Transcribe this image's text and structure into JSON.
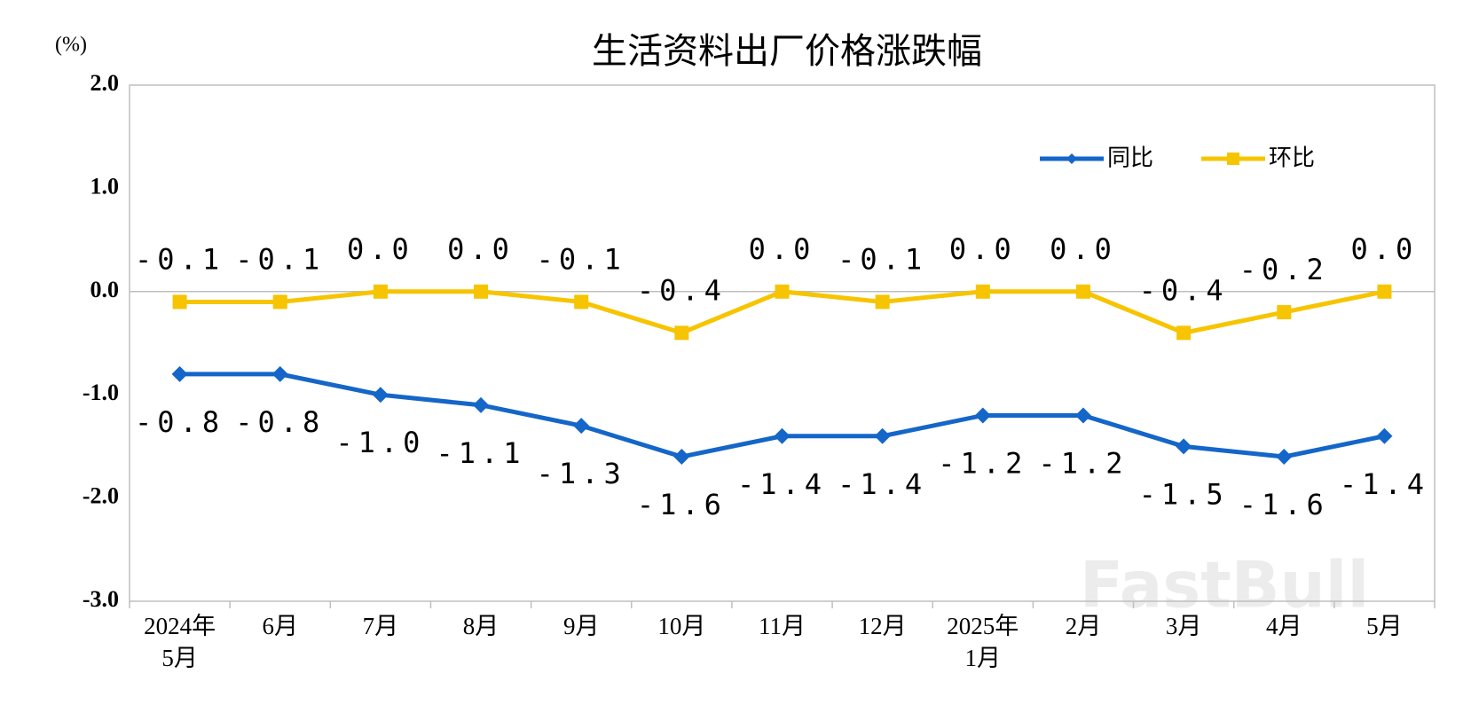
{
  "chart_data": {
    "type": "line",
    "title": "生活资料出厂价格涨跌幅",
    "y_axis_label": "(%)",
    "categories": [
      "2024年\n5月",
      "6月",
      "7月",
      "8月",
      "9月",
      "10月",
      "11月",
      "12月",
      "2025年\n1月",
      "2月",
      "3月",
      "4月",
      "5月"
    ],
    "series": [
      {
        "name": "同比",
        "color": "#1466c8",
        "marker": "diamond",
        "values": [
          -0.8,
          -0.8,
          -1.0,
          -1.1,
          -1.3,
          -1.6,
          -1.4,
          -1.4,
          -1.2,
          -1.2,
          -1.5,
          -1.6,
          -1.4
        ],
        "value_labels": [
          "-0.8",
          "-0.8",
          "-1.0",
          "-1.1",
          "-1.3",
          "-1.6",
          "-1.4",
          "-1.4",
          "-1.2",
          "-1.2",
          "-1.5",
          "-1.6",
          "-1.4"
        ]
      },
      {
        "name": "环比",
        "color": "#f6c400",
        "marker": "square",
        "values": [
          -0.1,
          -0.1,
          0.0,
          0.0,
          -0.1,
          -0.4,
          0.0,
          -0.1,
          0.0,
          0.0,
          -0.4,
          -0.2,
          0.0
        ],
        "value_labels": [
          "-0.1",
          "-0.1",
          "0.0",
          "0.0",
          "-0.1",
          "-0.4",
          "0.0",
          "-0.1",
          "0.0",
          "0.0",
          "-0.4",
          "-0.2",
          "0.0"
        ]
      }
    ],
    "ylim": [
      -3.0,
      2.0
    ],
    "yticks": [
      {
        "value": -3.0,
        "label": "-3.0"
      },
      {
        "value": -2.0,
        "label": "-2.0"
      },
      {
        "value": -1.0,
        "label": "-1.0"
      },
      {
        "value": 0.0,
        "label": "0.0"
      },
      {
        "value": 1.0,
        "label": "1.0"
      },
      {
        "value": 2.0,
        "label": "2.0"
      }
    ],
    "grid": false,
    "legend": "top-right",
    "watermark": "FastBull"
  }
}
